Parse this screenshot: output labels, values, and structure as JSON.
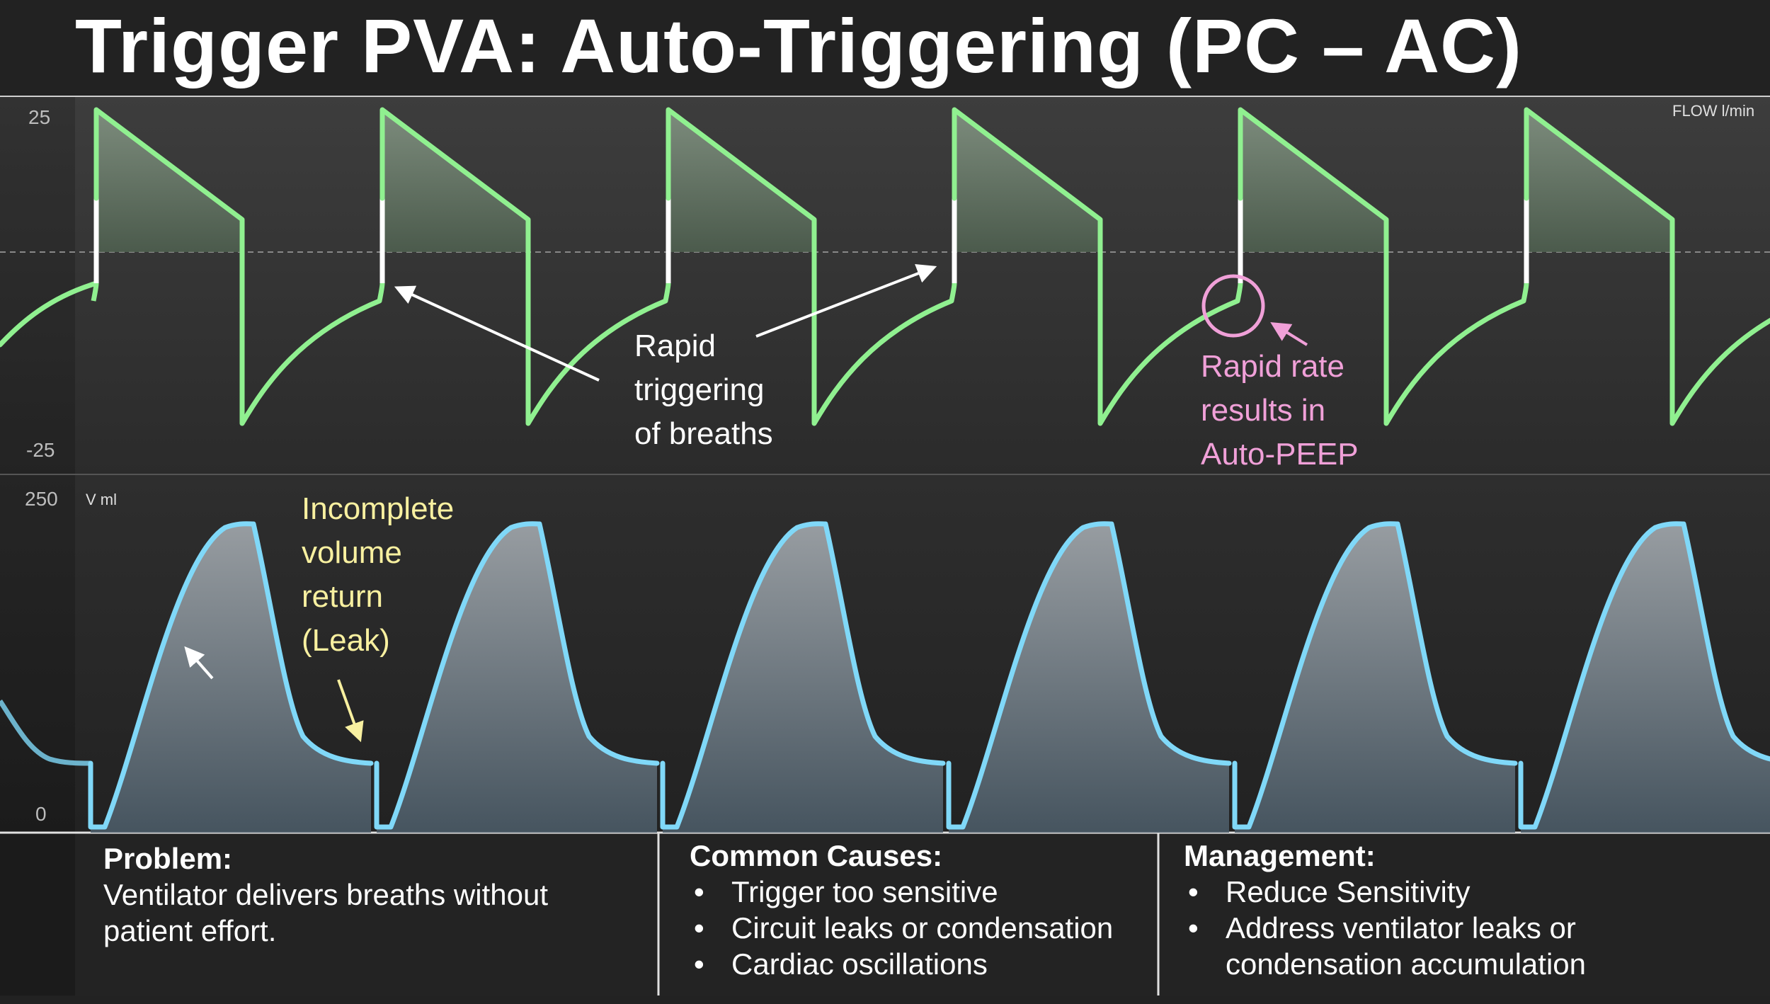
{
  "title": "Trigger PVA: Auto-Triggering (PC – AC)",
  "flow_chart": {
    "unit_label": "FLOW l/min",
    "y_max_label": "25",
    "y_min_label": "-25",
    "color": "#90f090"
  },
  "volume_chart": {
    "unit_label": "V ml",
    "y_max_label": "250",
    "y_min_label": "0",
    "color": "#80d8f8"
  },
  "annotations": {
    "rapid_triggering": [
      "Rapid",
      "triggering",
      "of breaths"
    ],
    "auto_peep": [
      "Rapid rate",
      "results in",
      "Auto-PEEP"
    ],
    "leak": [
      "Incomplete",
      "volume",
      "return",
      "(Leak)"
    ]
  },
  "colors": {
    "white_annotation": "#ffffff",
    "pink_annotation": "#f0a0d8",
    "yellow_annotation": "#f8f0a0",
    "background": "#222222"
  },
  "panels": {
    "problem": {
      "heading": "Problem:",
      "text": [
        "Ventilator delivers breaths without",
        "patient effort."
      ]
    },
    "causes": {
      "heading": "Common Causes:",
      "items": [
        "Trigger too sensitive",
        "Circuit leaks or condensation",
        "Cardiac oscillations"
      ]
    },
    "management": {
      "heading": "Management:",
      "items": [
        "Reduce Sensitivity",
        "Address ventilator leaks or",
        "condensation accumulation"
      ]
    }
  }
}
